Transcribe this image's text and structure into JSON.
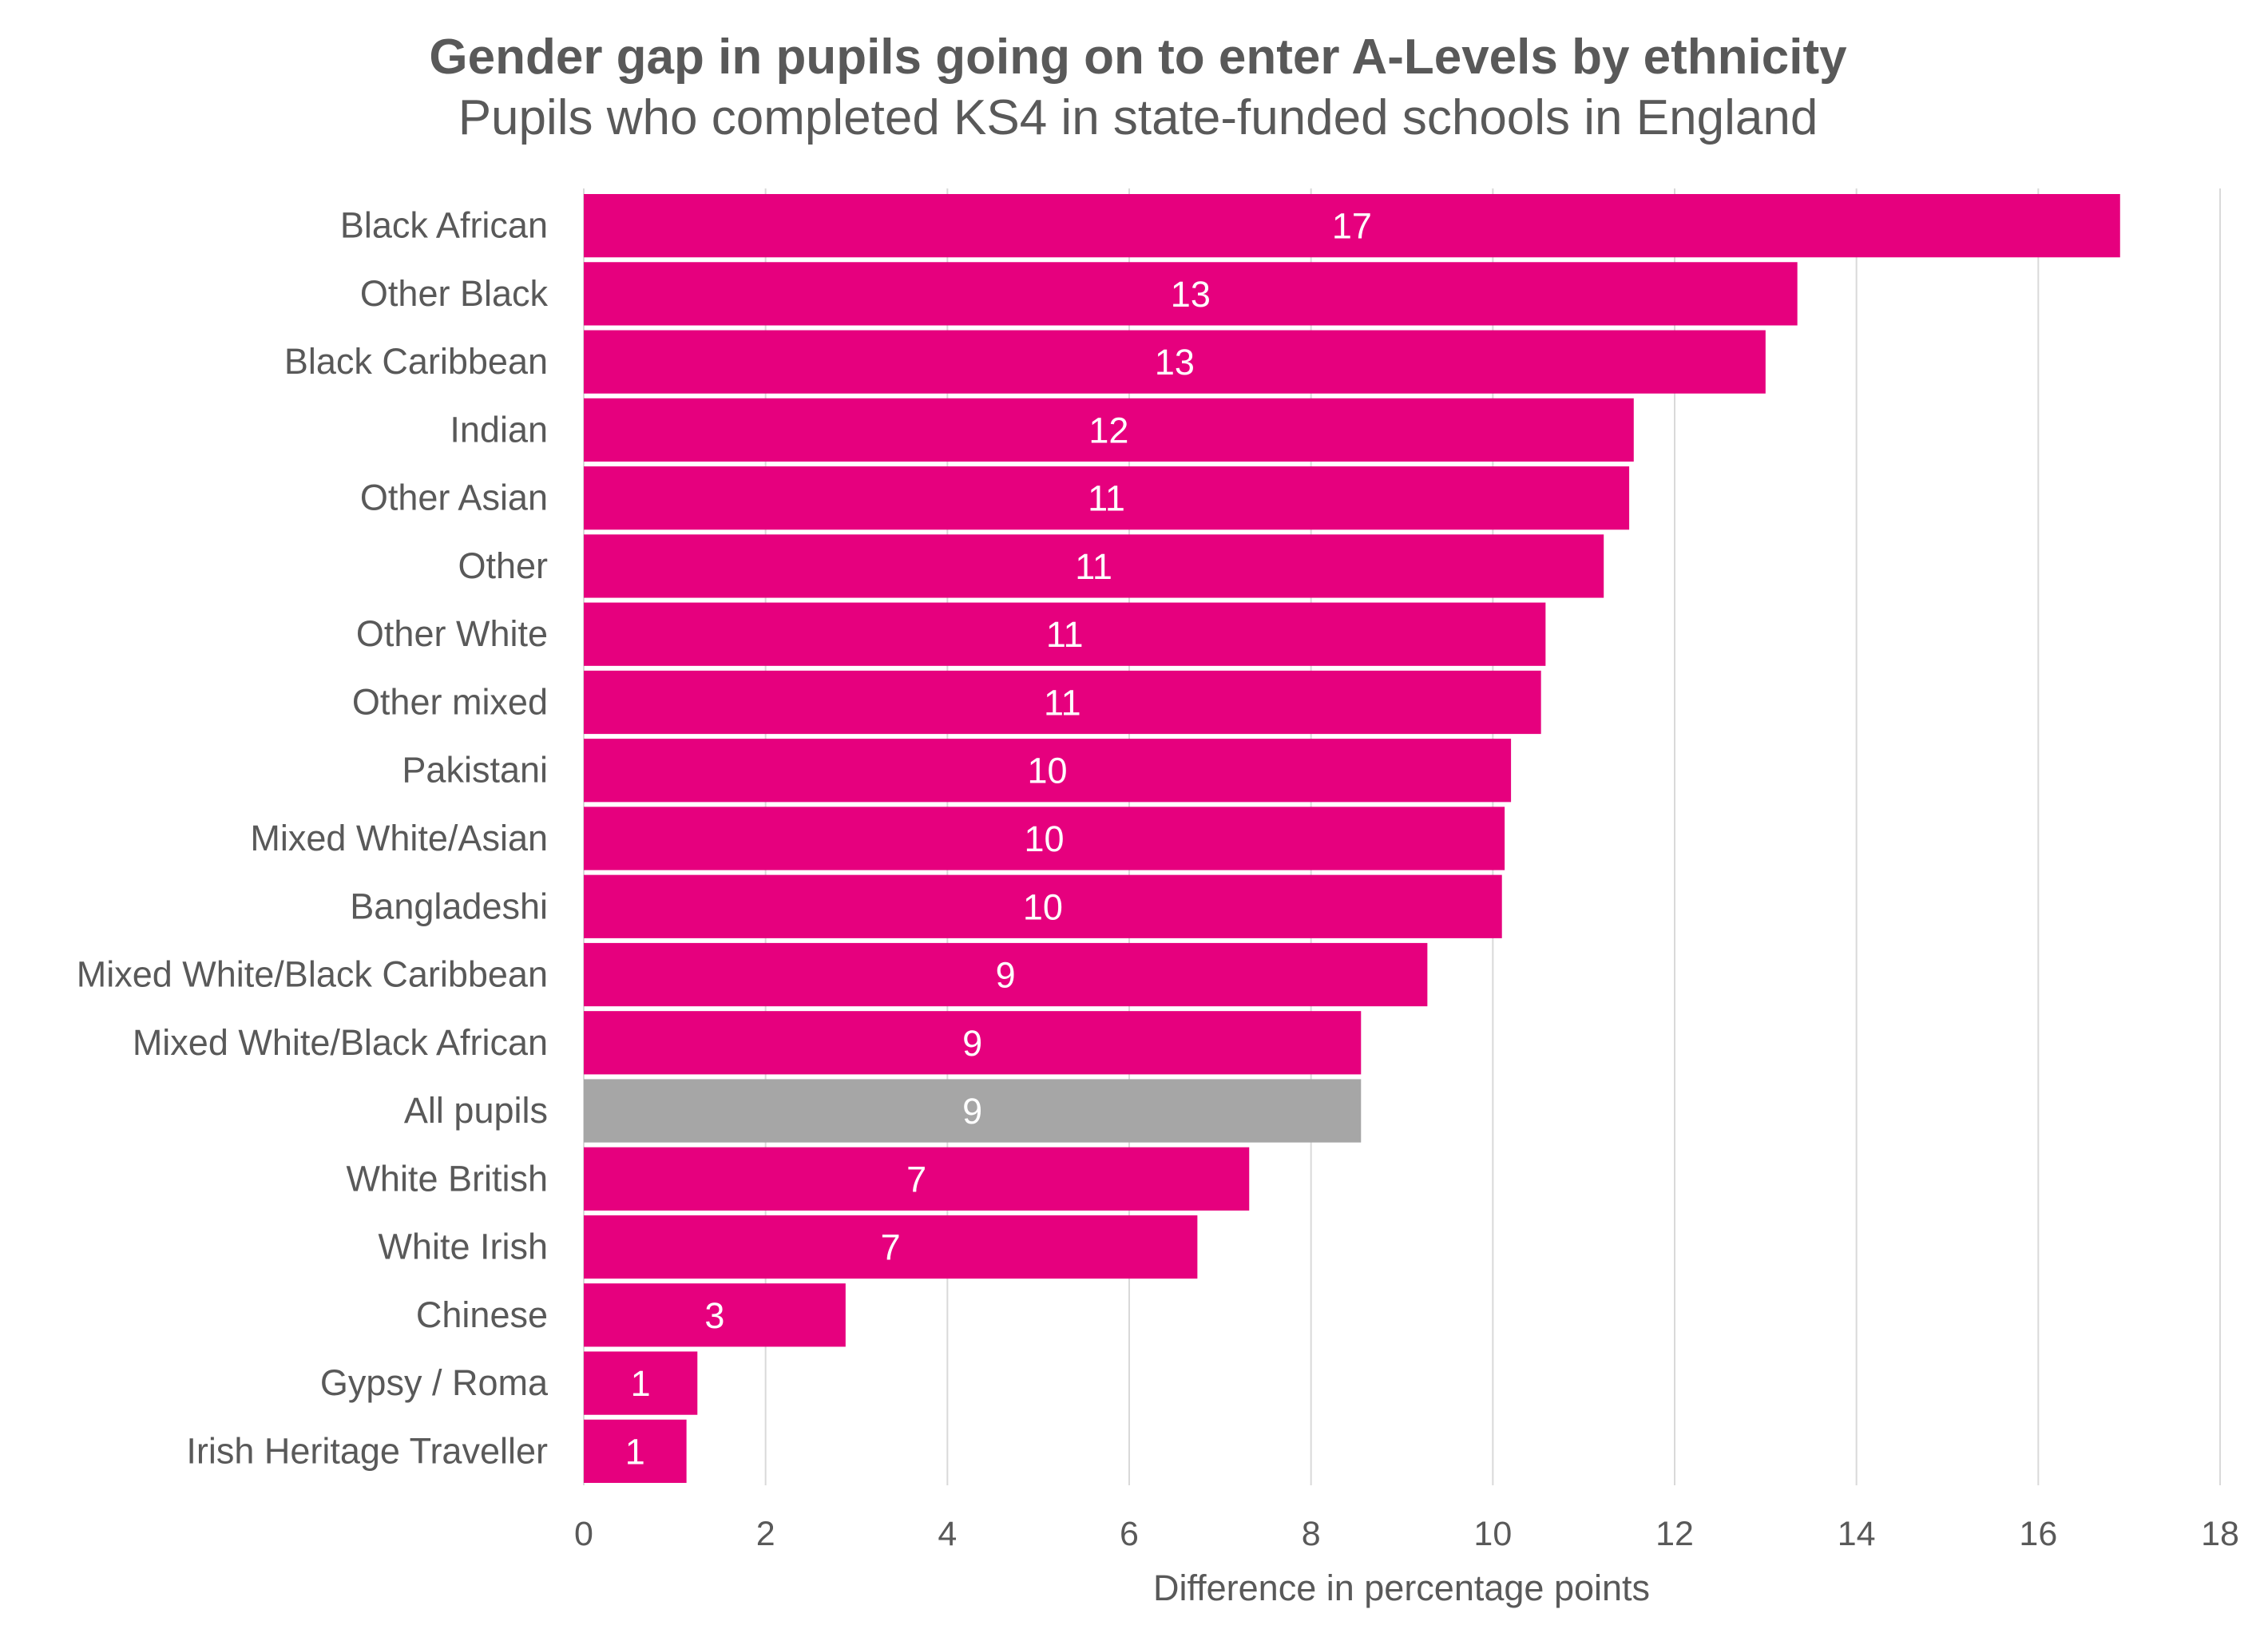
{
  "chart_data": {
    "type": "bar",
    "orientation": "horizontal",
    "title": "Gender gap in pupils going on to enter A-Levels by ethnicity",
    "subtitle": "Pupils who completed KS4 in state-funded schools in England",
    "xlabel": "Difference in percentage points",
    "ylabel": "",
    "xlim": [
      0,
      18
    ],
    "xticks": [
      0,
      2,
      4,
      6,
      8,
      10,
      12,
      14,
      16,
      18
    ],
    "grid": true,
    "legend": "none",
    "colors": {
      "default": "#e6007e",
      "highlight": "#a6a6a6",
      "label_text": "#ffffff"
    },
    "categories": [
      "Black African",
      "Other Black",
      "Black Caribbean",
      "Indian",
      "Other Asian",
      "Other",
      "Other White",
      "Other mixed",
      "Pakistani",
      "Mixed White/Asian",
      "Bangladeshi",
      "Mixed White/Black Caribbean",
      "Mixed White/Black African",
      "All pupils",
      "White British",
      "White Irish",
      "Chinese",
      "Gypsy / Roma",
      "Irish Heritage Traveller"
    ],
    "values": [
      16.9,
      13.35,
      13.0,
      11.55,
      11.5,
      11.22,
      10.58,
      10.53,
      10.2,
      10.13,
      10.1,
      9.28,
      8.55,
      8.55,
      7.32,
      6.75,
      2.88,
      1.25,
      1.13
    ],
    "data_labels": [
      "17",
      "13",
      "13",
      "12",
      "11",
      "11",
      "11",
      "11",
      "10",
      "10",
      "10",
      "9",
      "9",
      "9",
      "7",
      "7",
      "3",
      "1",
      "1"
    ],
    "highlight_category": "All pupils"
  }
}
